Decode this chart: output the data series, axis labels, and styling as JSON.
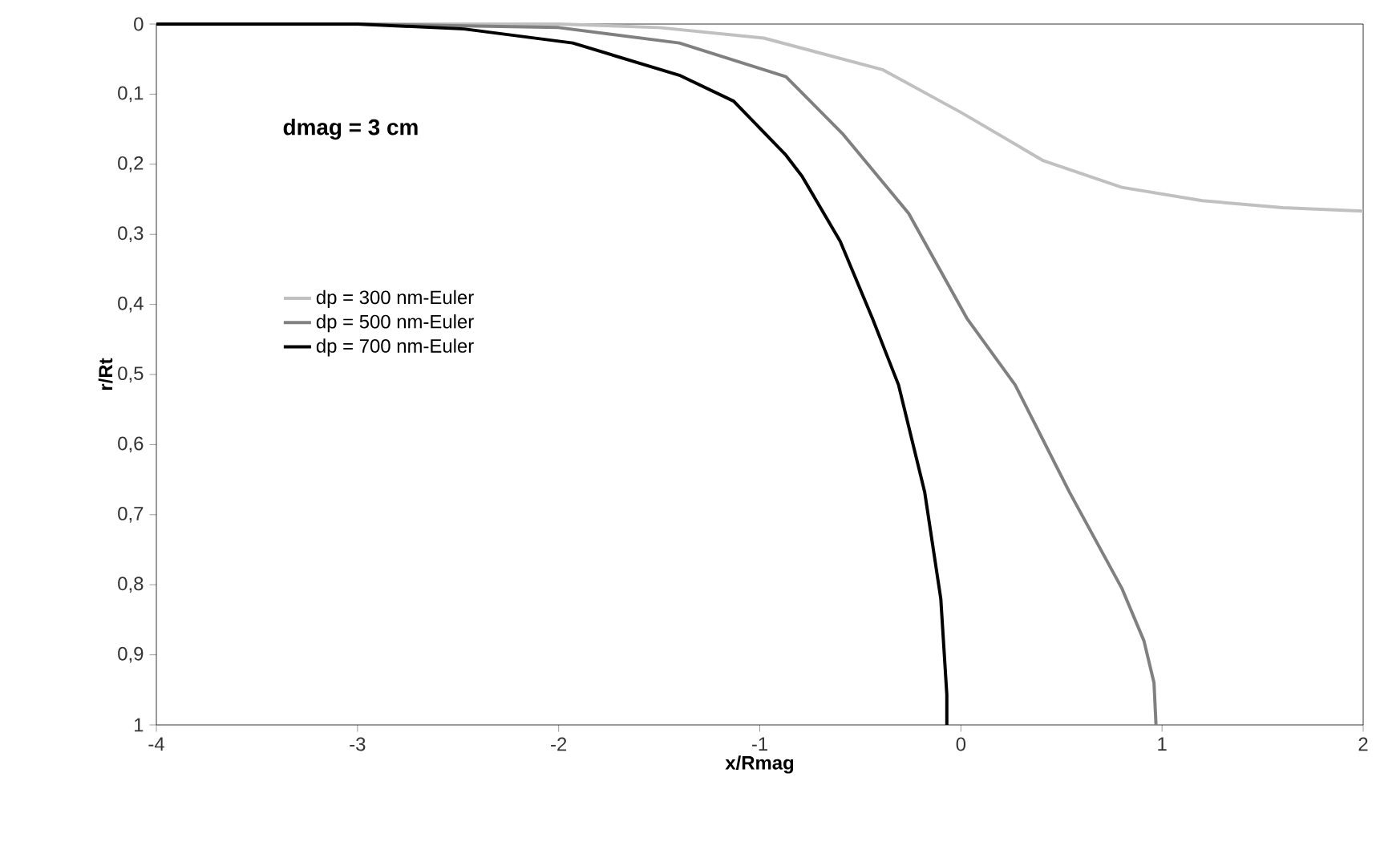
{
  "chart_data": {
    "type": "line",
    "xlabel": "x/Rmag",
    "ylabel": "r/Rt",
    "annotations": [
      "dmag = 3 cm"
    ],
    "xlim": [
      -4,
      2
    ],
    "xticks": [
      -4,
      -3,
      -2,
      -1,
      0,
      1,
      2
    ],
    "ylim": [
      1,
      0
    ],
    "yticks": [
      0,
      {
        "value": 0.1,
        "label": "0,1"
      },
      {
        "value": 0.2,
        "label": "0,2"
      },
      {
        "value": 0.3,
        "label": "0,3"
      },
      {
        "value": 0.4,
        "label": "0,4"
      },
      {
        "value": 0.5,
        "label": "0,5"
      },
      {
        "value": 0.6,
        "label": "0,6"
      },
      {
        "value": 0.7,
        "label": "0,7"
      },
      {
        "value": 0.8,
        "label": "0,8"
      },
      {
        "value": 0.9,
        "label": "0,9"
      },
      1
    ],
    "grid": false,
    "legend": "left",
    "marker": "none",
    "line_style": "solid",
    "series": [
      {
        "name": "dp = 300 nm-Euler",
        "color": "#c0c0c0",
        "x": [
          -4,
          -3,
          -2,
          -1.5,
          -0.98,
          -0.39,
          0.0,
          0.41,
          0.8,
          1.2,
          1.6,
          2.0
        ],
        "values": [
          0,
          0,
          0,
          0.005,
          0.02,
          0.065,
          0.126,
          0.195,
          0.233,
          0.252,
          0.262,
          0.267
        ]
      },
      {
        "name": "dp = 500 nm-Euler",
        "color": "#808080",
        "x": [
          -4,
          -3,
          -2,
          -1.4,
          -0.87,
          -0.59,
          -0.26,
          0.03,
          0.27,
          0.54,
          0.8,
          0.91,
          0.96,
          0.97
        ],
        "values": [
          0,
          0,
          0.005,
          0.027,
          0.075,
          0.156,
          0.27,
          0.42,
          0.515,
          0.668,
          0.805,
          0.88,
          0.94,
          1.0
        ]
      },
      {
        "name": "dp = 700 nm-Euler",
        "color": "#000000",
        "x": [
          -4,
          -3,
          -2.47,
          -1.93,
          -1.4,
          -1.13,
          -0.87,
          -0.79,
          -0.6,
          -0.44,
          -0.31,
          -0.18,
          -0.1,
          -0.07,
          -0.07
        ],
        "values": [
          0,
          0,
          0.007,
          0.027,
          0.073,
          0.11,
          0.187,
          0.217,
          0.31,
          0.42,
          0.515,
          0.668,
          0.82,
          0.957,
          1.0
        ]
      }
    ]
  }
}
